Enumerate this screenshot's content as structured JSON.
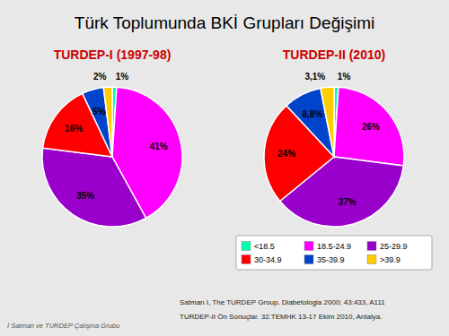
{
  "title": "Türk Toplumunda BKİ Grupları Değişimi",
  "annotations": [
    "İ Satman ve TURDEP Çalışma Grubu",
    "Satman I, The TURDEP Group. Diabetologia 2000; 43:433, A111",
    "TURDEP-II Ön Sonuçlar. 32.TEMHK 13-17 Ekim 2010, Antalya."
  ],
  "chart_data": [
    {
      "type": "pie",
      "title": "TURDEP-I (1997-98)",
      "categories": [
        "<18.5",
        "18.5-24.9",
        "25-29.9",
        "30-34.9",
        "35-39.9",
        ">39.9"
      ],
      "values": [
        1,
        41,
        35,
        16,
        5,
        2
      ],
      "value_labels": [
        "1%",
        "41%",
        "35%",
        "16%",
        "5%",
        "2%"
      ],
      "colors": [
        "#00ffaa",
        "#ff00ff",
        "#9900cc",
        "#ff0000",
        "#0044cc",
        "#ffcc00"
      ],
      "data_labels": true
    },
    {
      "type": "pie",
      "title": "TURDEP-II (2010)",
      "categories": [
        "<18.5",
        "18.5-24.9",
        "25-29.9",
        "30-34.9",
        "35-39.9",
        ">39.9"
      ],
      "values": [
        1,
        26,
        37,
        24,
        8.8,
        3.1
      ],
      "value_labels": [
        "1%",
        "26%",
        "37%",
        "24%",
        "8,8%",
        "3,1%"
      ],
      "colors": [
        "#00ffaa",
        "#ff00ff",
        "#9900cc",
        "#ff0000",
        "#0044cc",
        "#ffcc00"
      ],
      "data_labels": true,
      "legend": "bottom"
    }
  ]
}
